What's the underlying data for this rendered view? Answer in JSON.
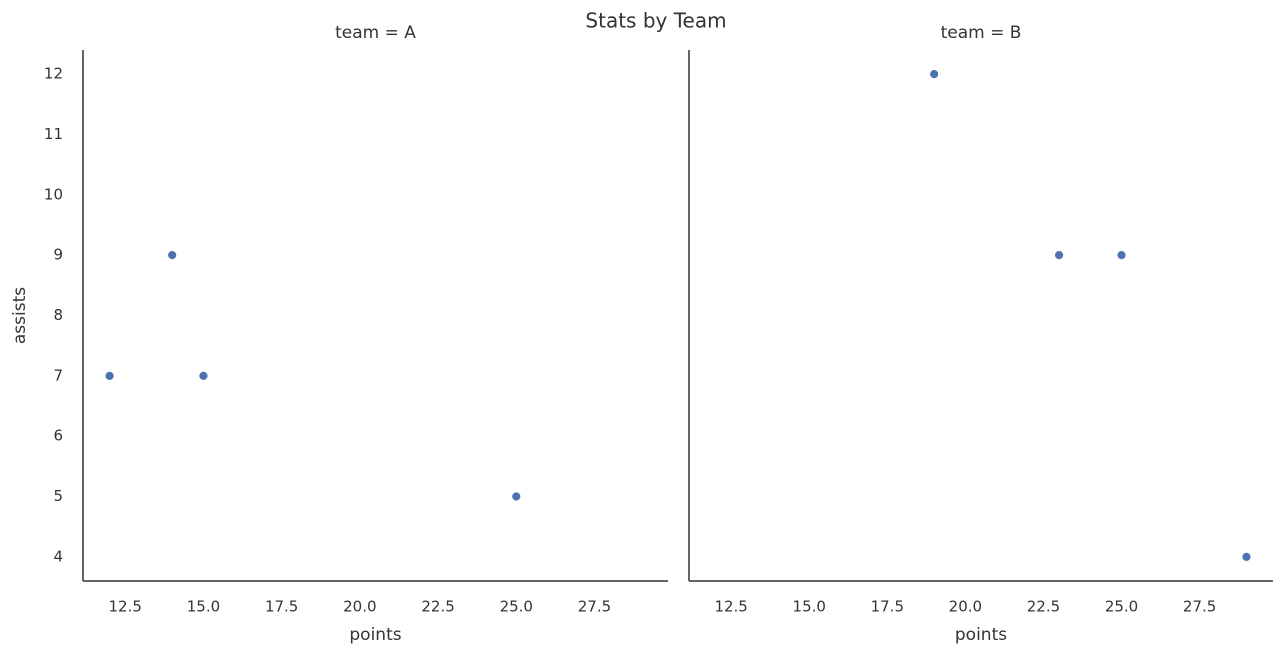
{
  "title": "Stats by Team",
  "chart_data": [
    {
      "type": "scatter",
      "title": "team = A",
      "xlabel": "points",
      "ylabel": "assists",
      "color": "#4c72b0",
      "x": [
        12,
        14,
        15,
        25
      ],
      "values": [
        7,
        9,
        7,
        5
      ],
      "xlim": [
        11.15,
        29.85
      ],
      "ylim": [
        3.6,
        12.4
      ],
      "xticks": [
        12.5,
        {
          "value": 15,
          "label": "15.0"
        },
        17.5,
        {
          "value": 20,
          "label": "20.0"
        },
        22.5,
        {
          "value": 25,
          "label": "25.0"
        },
        27.5
      ],
      "yticks": [
        4,
        5,
        6,
        7,
        8,
        9,
        10,
        11,
        12
      ]
    },
    {
      "type": "scatter",
      "title": "team = B",
      "xlabel": "points",
      "color": "#4c72b0",
      "x": [
        19,
        23,
        25,
        29
      ],
      "values": [
        12,
        9,
        9,
        4
      ],
      "xlim": [
        11.15,
        29.85
      ],
      "ylim": [
        3.6,
        12.4
      ],
      "xticks": [
        12.5,
        {
          "value": 15,
          "label": "15.0"
        },
        17.5,
        {
          "value": 20,
          "label": "20.0"
        },
        22.5,
        {
          "value": 25,
          "label": "25.0"
        },
        27.5
      ]
    }
  ]
}
